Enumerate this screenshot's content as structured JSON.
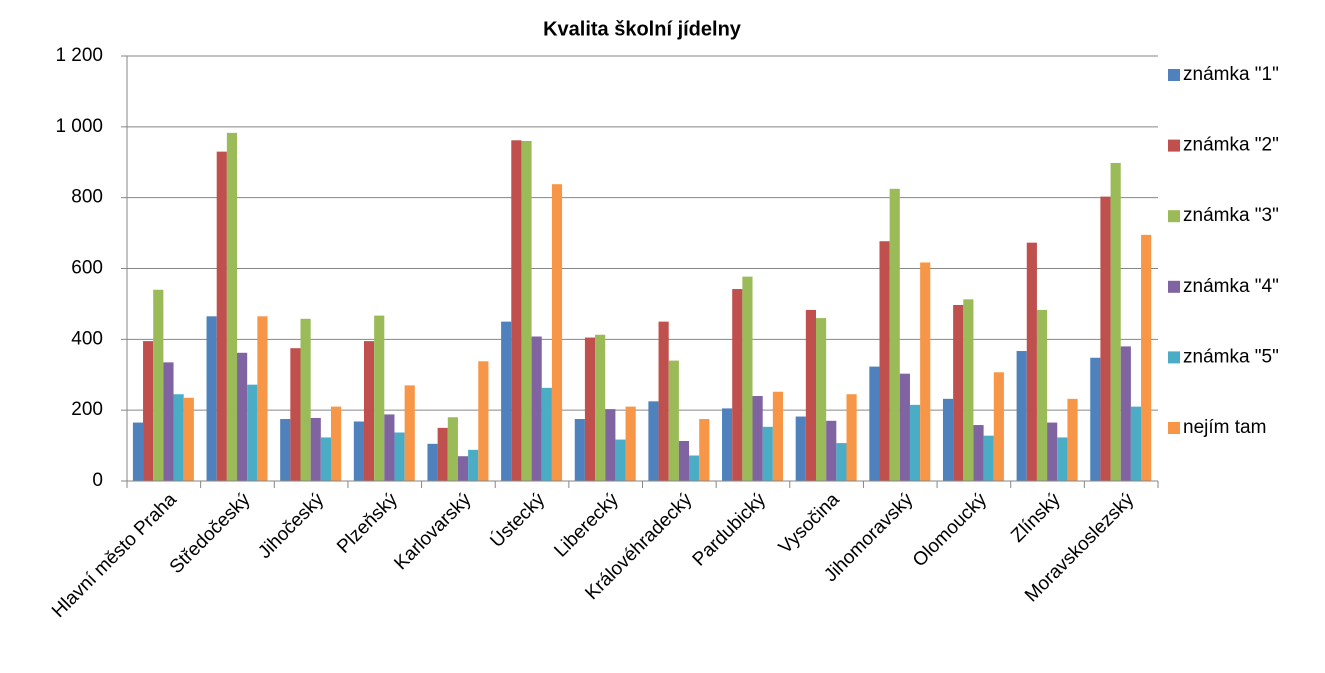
{
  "chart_data": {
    "type": "bar",
    "title": "Kvalita školní jídelny",
    "categories": [
      "Hlavní město Praha",
      "Středočeský",
      "Jihočeský",
      "Plzeňský",
      "Karlovarský",
      "Ústecký",
      "Liberecký",
      "Královéhradecký",
      "Pardubický",
      "Vysočina",
      "Jihomoravský",
      "Olomoucký",
      "Zlínský",
      "Moravskoslezský"
    ],
    "series": [
      {
        "name": "známka \"1\"",
        "color": "#4f81bd",
        "values": [
          165,
          465,
          175,
          168,
          105,
          450,
          175,
          225,
          205,
          182,
          323,
          232,
          367,
          348
        ]
      },
      {
        "name": "známka \"2\"",
        "color": "#c0504d",
        "values": [
          395,
          930,
          375,
          395,
          150,
          962,
          405,
          450,
          542,
          483,
          677,
          497,
          673,
          803
        ]
      },
      {
        "name": "známka \"3\"",
        "color": "#9bbb59",
        "values": [
          540,
          983,
          458,
          467,
          180,
          960,
          413,
          340,
          577,
          460,
          825,
          513,
          483,
          898
        ]
      },
      {
        "name": "známka \"4\"",
        "color": "#8064a2",
        "values": [
          335,
          362,
          178,
          188,
          70,
          408,
          203,
          113,
          240,
          170,
          303,
          158,
          165,
          380
        ]
      },
      {
        "name": "známka \"5\"",
        "color": "#4bacc6",
        "values": [
          245,
          272,
          123,
          137,
          88,
          263,
          117,
          72,
          153,
          107,
          215,
          128,
          123,
          210
        ]
      },
      {
        "name": "nejím tam",
        "color": "#f79646",
        "values": [
          235,
          465,
          210,
          270,
          338,
          838,
          210,
          175,
          252,
          245,
          617,
          307,
          232,
          695
        ]
      }
    ],
    "ylim": [
      0,
      1200
    ],
    "yticks": [
      0,
      200,
      400,
      600,
      800,
      {
        "value": 1000,
        "label": "1 000"
      },
      {
        "value": 1200,
        "label": "1 200"
      }
    ],
    "grid": true,
    "legend": "right"
  }
}
